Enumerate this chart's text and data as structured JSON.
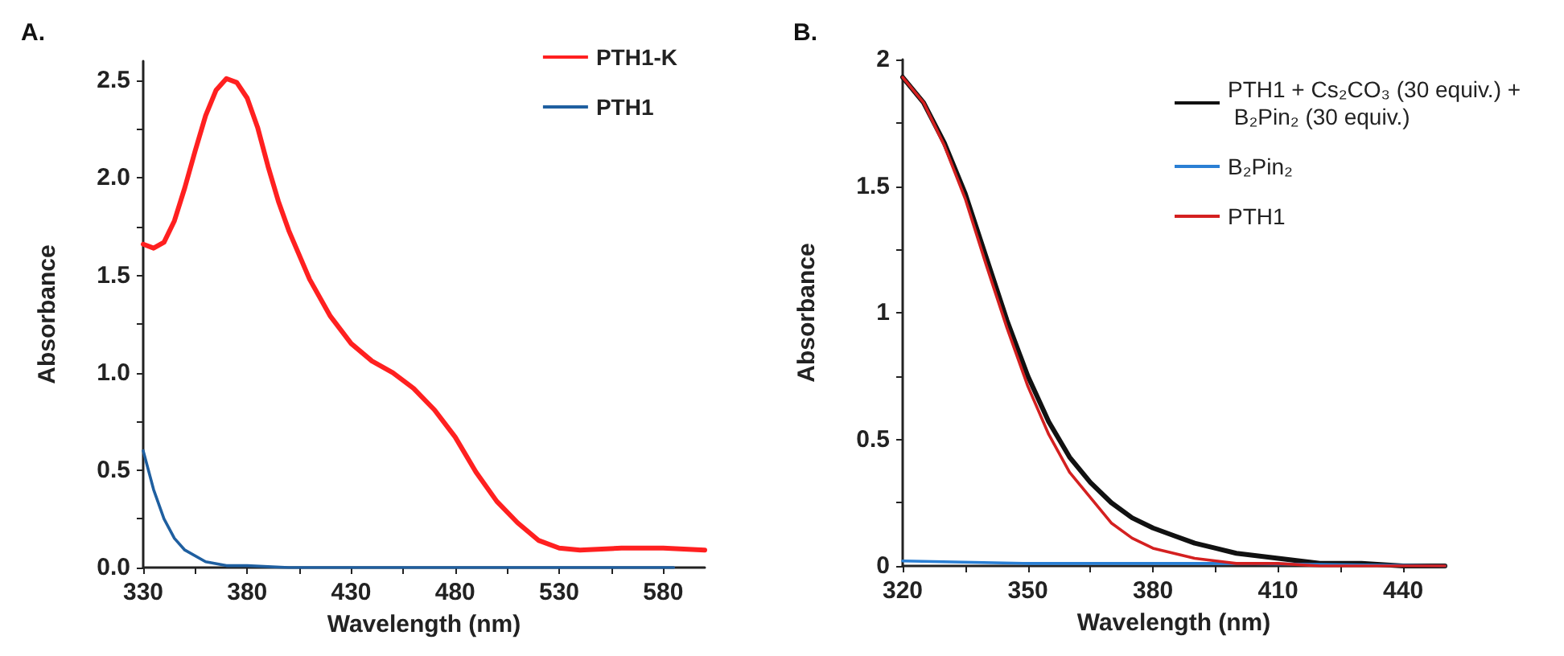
{
  "chart_data": [
    {
      "type": "line",
      "title": "A.",
      "xlabel": "Wavelength (nm)",
      "ylabel": "Absorbance",
      "legend": "top right",
      "grid": false,
      "xlim": [
        330,
        600
      ],
      "ylim": [
        0,
        2.6
      ],
      "xticks": [
        330,
        {
          "value": 355,
          "label": null
        },
        380,
        {
          "value": 405,
          "label": null
        },
        430,
        {
          "value": 455,
          "label": null
        },
        480,
        {
          "value": 505,
          "label": null
        },
        530,
        {
          "value": 555,
          "label": null
        },
        580
      ],
      "yticks": [
        {
          "value": 0,
          "label": "0.0"
        },
        {
          "value": 0.25,
          "label": null
        },
        0.5,
        {
          "value": 0.75,
          "label": null
        },
        {
          "value": 1,
          "label": "1.0"
        },
        {
          "value": 1.25,
          "label": null
        },
        1.5,
        {
          "value": 1.75,
          "label": null
        },
        {
          "value": 2,
          "label": "2.0"
        },
        {
          "value": 2.25,
          "label": null
        },
        2.5
      ],
      "series": [
        {
          "name": "PTH1-K",
          "color": "#ff2020",
          "x": [
            330,
            335,
            340,
            345,
            350,
            355,
            360,
            365,
            370,
            375,
            380,
            385,
            390,
            395,
            400,
            410,
            420,
            430,
            440,
            450,
            460,
            470,
            480,
            490,
            500,
            510,
            520,
            530,
            540,
            560,
            580,
            600
          ],
          "values": [
            1.66,
            1.64,
            1.67,
            1.78,
            1.95,
            2.14,
            2.32,
            2.45,
            2.51,
            2.49,
            2.41,
            2.26,
            2.06,
            1.88,
            1.73,
            1.48,
            1.29,
            1.15,
            1.06,
            1.0,
            0.92,
            0.81,
            0.67,
            0.49,
            0.34,
            0.23,
            0.14,
            0.1,
            0.09,
            0.1,
            0.1,
            0.09
          ]
        },
        {
          "name": "PTH1",
          "color": "#1f5fa0",
          "x": [
            330,
            335,
            340,
            345,
            350,
            360,
            370,
            380,
            400,
            585
          ],
          "values": [
            0.6,
            0.4,
            0.25,
            0.15,
            0.09,
            0.03,
            0.01,
            0.01,
            0,
            0
          ]
        }
      ]
    },
    {
      "type": "line",
      "title": "B.",
      "xlabel": "Wavelength (nm)",
      "ylabel": "Absorbance",
      "legend": "top right",
      "grid": false,
      "xlim": [
        320,
        450
      ],
      "ylim": [
        0,
        2
      ],
      "xticks": [
        320,
        {
          "value": 335,
          "label": null
        },
        350,
        {
          "value": 365,
          "label": null
        },
        380,
        {
          "value": 395,
          "label": null
        },
        410,
        {
          "value": 425,
          "label": null
        },
        440
      ],
      "yticks": [
        0,
        {
          "value": 0.25,
          "label": null
        },
        0.5,
        {
          "value": 0.75,
          "label": null
        },
        1,
        {
          "value": 1.25,
          "label": null
        },
        1.5,
        {
          "value": 1.75,
          "label": null
        },
        2
      ],
      "series": [
        {
          "name": "PTH1 + Cs₂CO₃ (30 equiv.) + B₂Pin₂ (30 equiv.)",
          "color": "#111111",
          "x": [
            320,
            325,
            330,
            335,
            340,
            345,
            350,
            355,
            360,
            365,
            370,
            375,
            380,
            385,
            390,
            395,
            400,
            410,
            420,
            430,
            440,
            450
          ],
          "values": [
            1.93,
            1.83,
            1.67,
            1.47,
            1.22,
            0.97,
            0.75,
            0.57,
            0.43,
            0.33,
            0.25,
            0.19,
            0.15,
            0.12,
            0.09,
            0.07,
            0.05,
            0.03,
            0.01,
            0.01,
            0,
            0
          ]
        },
        {
          "name": "B₂Pin₂",
          "color": "#2a7fd4",
          "x": [
            320,
            350,
            400,
            450
          ],
          "values": [
            0.02,
            0.01,
            0.01,
            0
          ]
        },
        {
          "name": "PTH1",
          "color": "#d42020",
          "x": [
            320,
            325,
            330,
            335,
            340,
            345,
            350,
            355,
            360,
            365,
            370,
            375,
            380,
            390,
            400,
            410,
            420,
            450
          ],
          "values": [
            1.93,
            1.83,
            1.66,
            1.45,
            1.19,
            0.94,
            0.71,
            0.52,
            0.37,
            0.27,
            0.17,
            0.11,
            0.07,
            0.03,
            0.01,
            0.01,
            0,
            0
          ]
        }
      ]
    }
  ]
}
